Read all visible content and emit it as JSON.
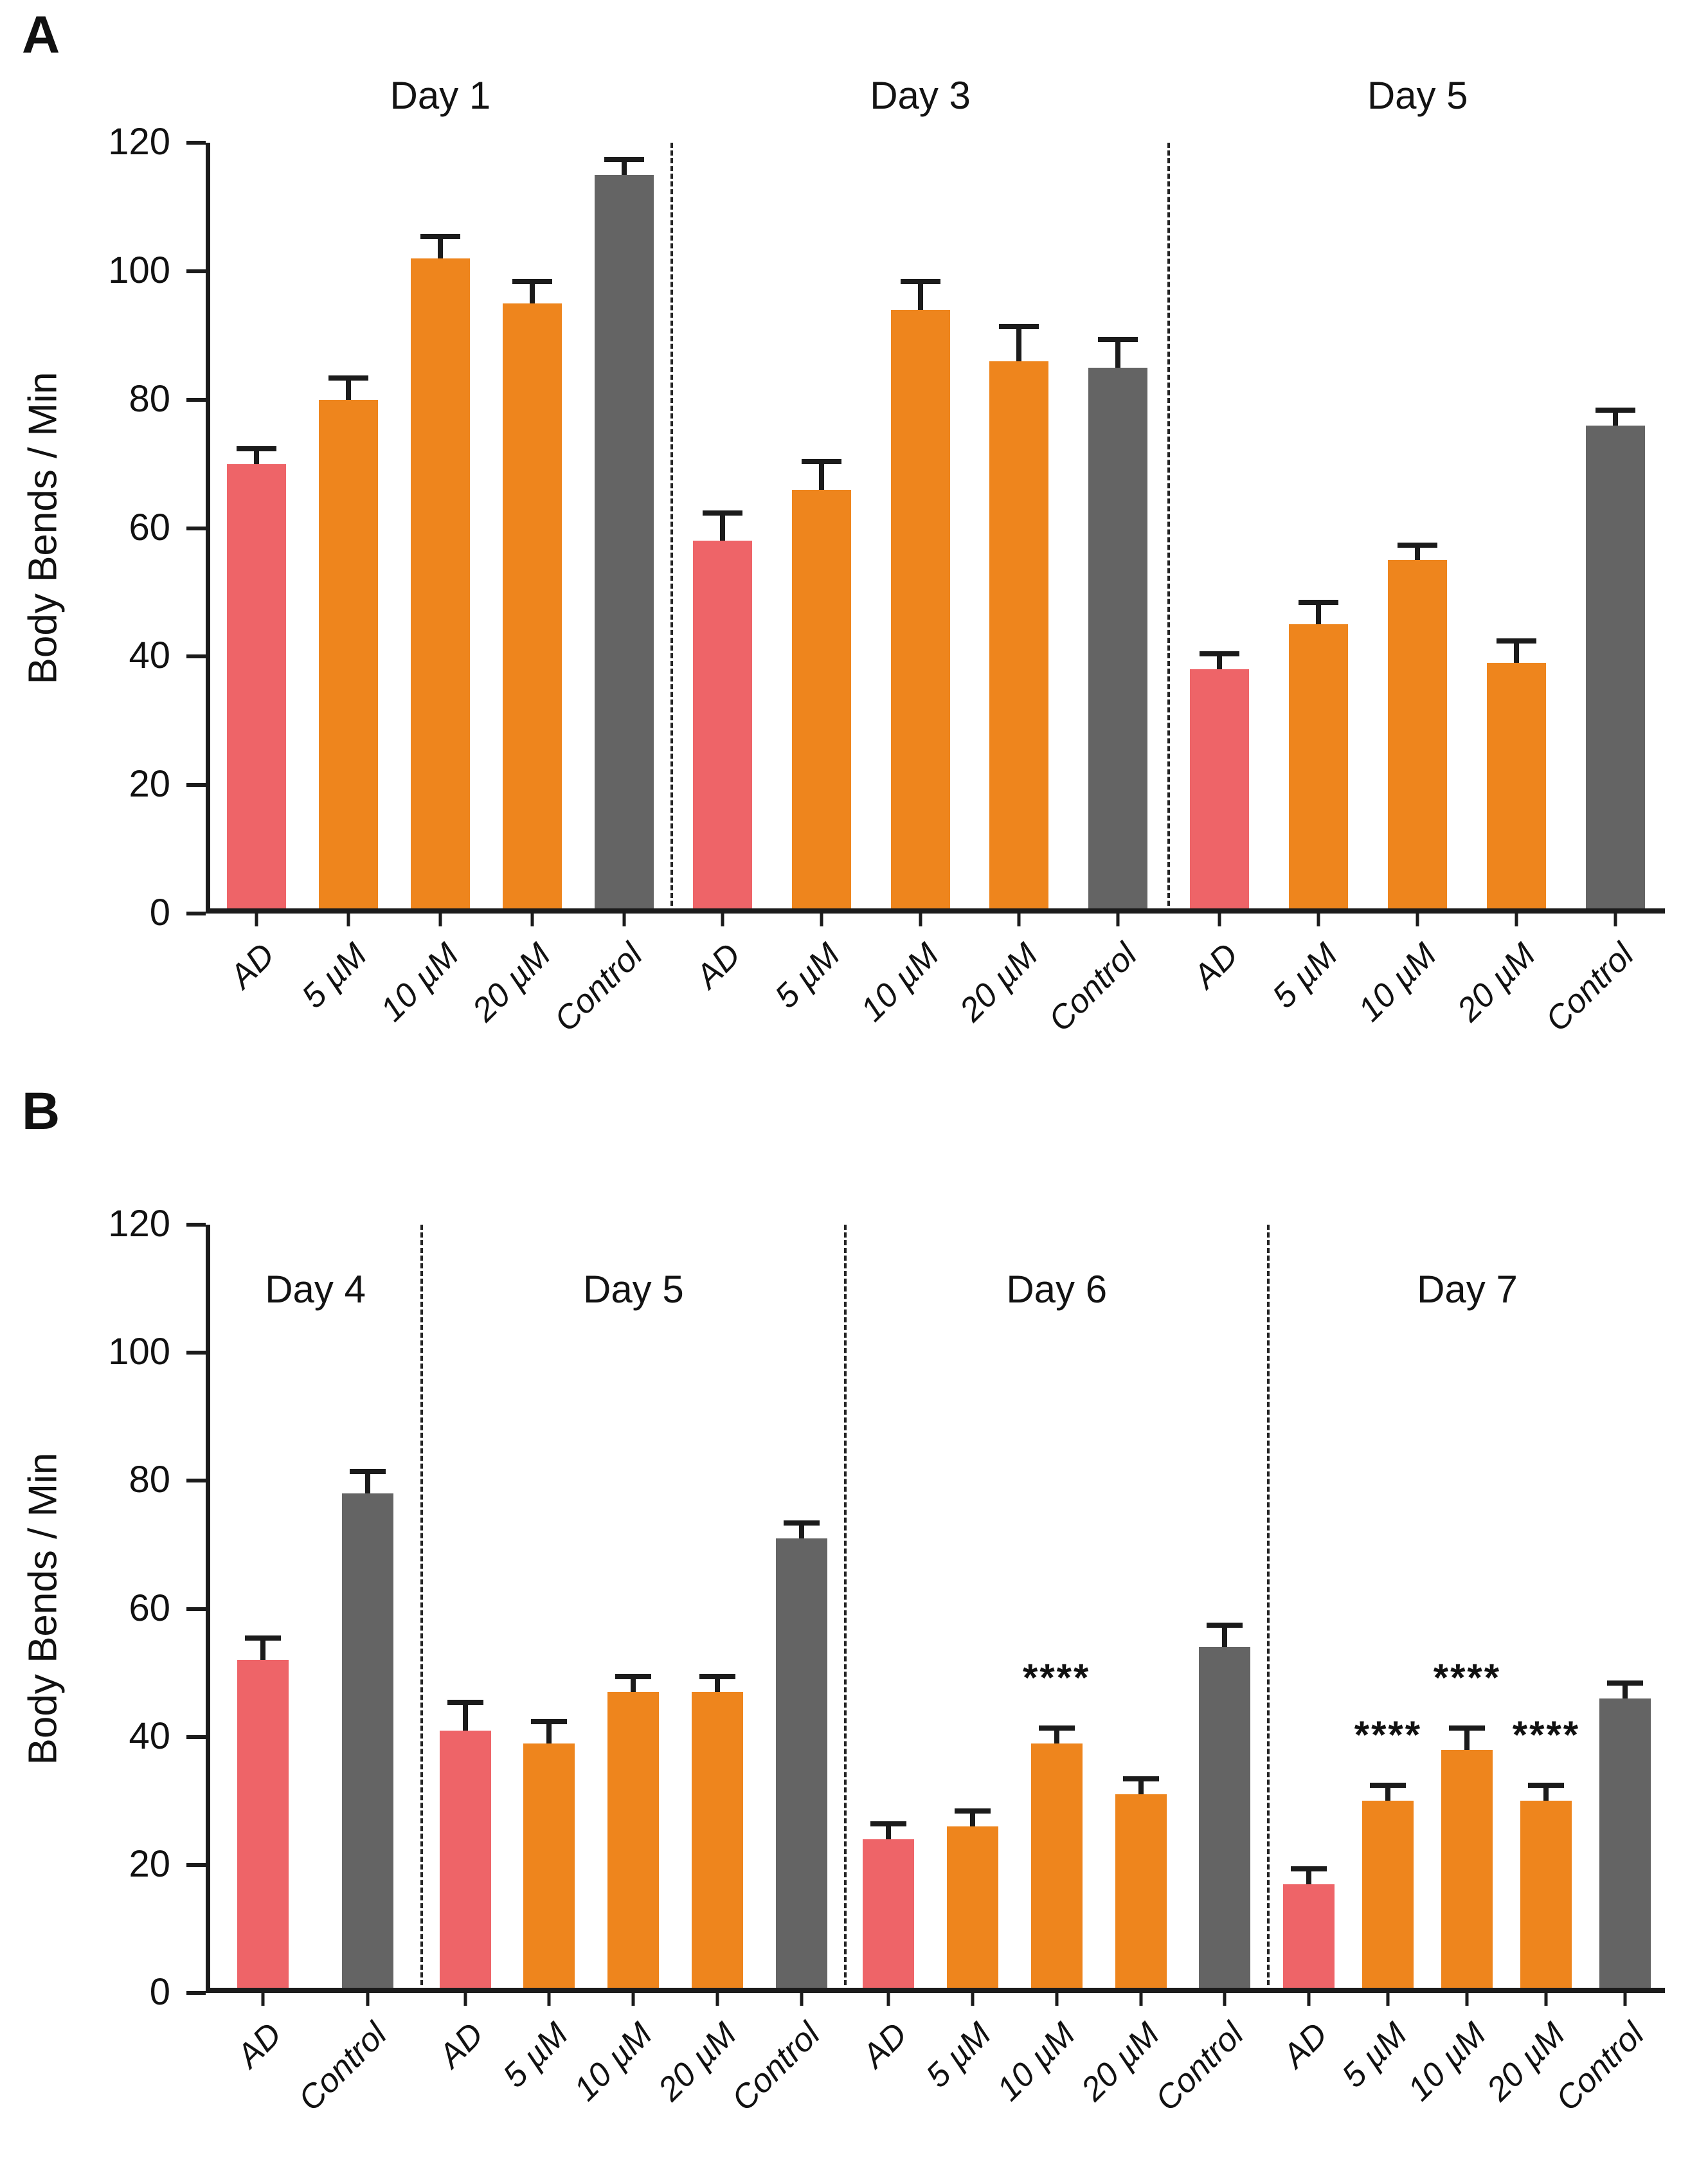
{
  "figure": {
    "panels": [
      {
        "letter": "A"
      },
      {
        "letter": "B"
      }
    ]
  },
  "colors": {
    "ad": "#ee6468",
    "dose": "#ee851d",
    "control": "#646464",
    "ink": "#1b1b1b",
    "background": "#ffffff"
  },
  "chart_data": [
    {
      "type": "bar",
      "panel": "A",
      "ylabel": "Body Bends / Min",
      "ylim": [
        0,
        120
      ],
      "yticks": [
        0,
        20,
        40,
        60,
        80,
        100,
        120
      ],
      "grid": false,
      "group_title_position": "above",
      "separator_style": "dashed",
      "groups": [
        {
          "title": "Day 1",
          "span": 4.65,
          "bars": [
            {
              "label": "AD",
              "value": 70,
              "err": 2,
              "color": "ad"
            },
            {
              "label": "5 µM",
              "value": 80,
              "err": 3,
              "color": "dose"
            },
            {
              "label": "10 µM",
              "value": 102,
              "err": 3,
              "color": "dose"
            },
            {
              "label": "20 µM",
              "value": 95,
              "err": 3,
              "color": "dose"
            },
            {
              "label": "Control",
              "value": 115,
              "err": 2,
              "color": "control"
            }
          ]
        },
        {
          "title": "Day 3",
          "span": 5,
          "bars": [
            {
              "label": "AD",
              "value": 58,
              "err": 4,
              "color": "ad"
            },
            {
              "label": "5 µM",
              "value": 66,
              "err": 4,
              "color": "dose"
            },
            {
              "label": "10 µM",
              "value": 94,
              "err": 4,
              "color": "dose"
            },
            {
              "label": "20 µM",
              "value": 86,
              "err": 5,
              "color": "dose"
            },
            {
              "label": "Control",
              "value": 85,
              "err": 4,
              "color": "control"
            }
          ]
        },
        {
          "title": "Day 5",
          "span": 5,
          "bars": [
            {
              "label": "AD",
              "value": 38,
              "err": 2,
              "color": "ad"
            },
            {
              "label": "5 µM",
              "value": 45,
              "err": 3,
              "color": "dose"
            },
            {
              "label": "10 µM",
              "value": 55,
              "err": 2,
              "color": "dose"
            },
            {
              "label": "20 µM",
              "value": 39,
              "err": 3,
              "color": "dose"
            },
            {
              "label": "Control",
              "value": 76,
              "err": 2,
              "color": "control"
            }
          ]
        }
      ]
    },
    {
      "type": "bar",
      "panel": "B",
      "ylabel": "Body Bends / Min",
      "ylim": [
        0,
        120
      ],
      "yticks": [
        0,
        20,
        40,
        60,
        80,
        100,
        120
      ],
      "grid": false,
      "group_title_position": "inside",
      "separator_style": "dashed",
      "groups": [
        {
          "title": "Day 4",
          "span": 2.5,
          "bars": [
            {
              "label": "AD",
              "value": 52,
              "err": 3,
              "color": "ad"
            },
            {
              "label": "Control",
              "value": 78,
              "err": 3,
              "color": "control"
            }
          ]
        },
        {
          "title": "Day 5",
          "span": 5,
          "bars": [
            {
              "label": "AD",
              "value": 41,
              "err": 4,
              "color": "ad"
            },
            {
              "label": "5 µM",
              "value": 39,
              "err": 3,
              "color": "dose"
            },
            {
              "label": "10 µM",
              "value": 47,
              "err": 2,
              "color": "dose"
            },
            {
              "label": "20 µM",
              "value": 47,
              "err": 2,
              "color": "dose"
            },
            {
              "label": "Control",
              "value": 71,
              "err": 2,
              "color": "control"
            }
          ]
        },
        {
          "title": "Day 6",
          "span": 5,
          "bars": [
            {
              "label": "AD",
              "value": 24,
              "err": 2,
              "color": "ad"
            },
            {
              "label": "5 µM",
              "value": 26,
              "err": 2,
              "color": "dose"
            },
            {
              "label": "10 µM",
              "value": 39,
              "err": 2,
              "color": "dose",
              "sig": "****"
            },
            {
              "label": "20 µM",
              "value": 31,
              "err": 2,
              "color": "dose"
            },
            {
              "label": "Control",
              "value": 54,
              "err": 3,
              "color": "control"
            }
          ]
        },
        {
          "title": "Day 7",
          "span": 4.7,
          "bars": [
            {
              "label": "AD",
              "value": 17,
              "err": 2,
              "color": "ad"
            },
            {
              "label": "5 µM",
              "value": 30,
              "err": 2,
              "color": "dose",
              "sig": "****"
            },
            {
              "label": "10 µM",
              "value": 38,
              "err": 3,
              "color": "dose",
              "sig": "****"
            },
            {
              "label": "20 µM",
              "value": 30,
              "err": 2,
              "color": "dose",
              "sig": "****"
            },
            {
              "label": "Control",
              "value": 46,
              "err": 2,
              "color": "control"
            }
          ]
        }
      ]
    }
  ]
}
